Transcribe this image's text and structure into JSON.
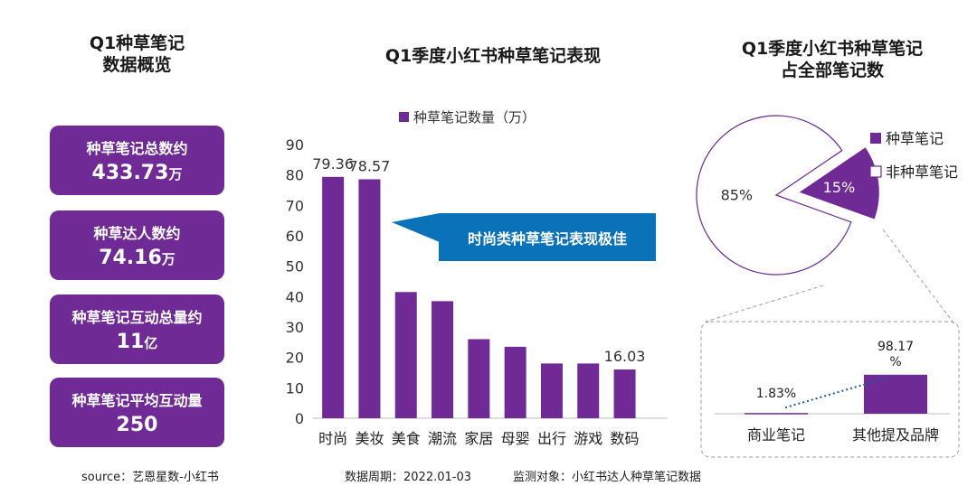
{
  "left_panel": {
    "title_line1": "Q1种草笔记",
    "title_line2": "数据概览",
    "cards": [
      {
        "label": "种草笔记总数约",
        "value": "433.73",
        "unit": "万"
      },
      {
        "label": "种草达人数约",
        "value": "74.16",
        "unit": "万"
      },
      {
        "label": "种草笔记互动总量约",
        "value": "11",
        "unit": "亿"
      },
      {
        "label": "种草笔记平均互动量",
        "value": "250",
        "unit": ""
      }
    ]
  },
  "middle_panel": {
    "title": "Q1季度小红书种草笔记表现",
    "callout": "时尚类种草笔记表现极佳"
  },
  "right_panel": {
    "title_line1": "Q1季度小红书种草笔记",
    "title_line2": "占全部笔记数"
  },
  "footer": {
    "source": "source：艺恩星数-小红书",
    "period": "数据周期：2022.01-03",
    "target": "监测对象：小红书达人种草笔记数据"
  },
  "colors": {
    "accent": "#6f2a96",
    "callout": "#0a72b8"
  },
  "chart_data": [
    {
      "type": "bar",
      "title": "Q1季度小红书种草笔记表现",
      "categories": [
        "时尚",
        "美妆",
        "美食",
        "潮流",
        "家居",
        "母婴",
        "出行",
        "游戏",
        "数码"
      ],
      "series": [
        {
          "name": "种草笔记数量（万）",
          "values": [
            79.36,
            78.57,
            41.5,
            38.5,
            26,
            23.5,
            18,
            18,
            16.03
          ]
        }
      ],
      "data_labels": {
        "0": "79.36",
        "1": "78.57",
        "8": "16.03"
      },
      "yticks": [
        "0",
        "10",
        "20",
        "30",
        "40",
        "50",
        "60",
        "70",
        "80",
        "90"
      ],
      "ylim": [
        0,
        90
      ],
      "legend": "top-center"
    },
    {
      "type": "pie",
      "labels": [
        "种草笔记",
        "非种草笔记"
      ],
      "values": [
        15,
        85
      ],
      "value_labels": [
        "15%",
        "85%"
      ],
      "legend": "right"
    },
    {
      "type": "bar",
      "categories": [
        "商业笔记",
        "其他提及品牌"
      ],
      "values": [
        1.83,
        98.17
      ],
      "value_labels": [
        "1.83%",
        "98.17%"
      ]
    }
  ]
}
